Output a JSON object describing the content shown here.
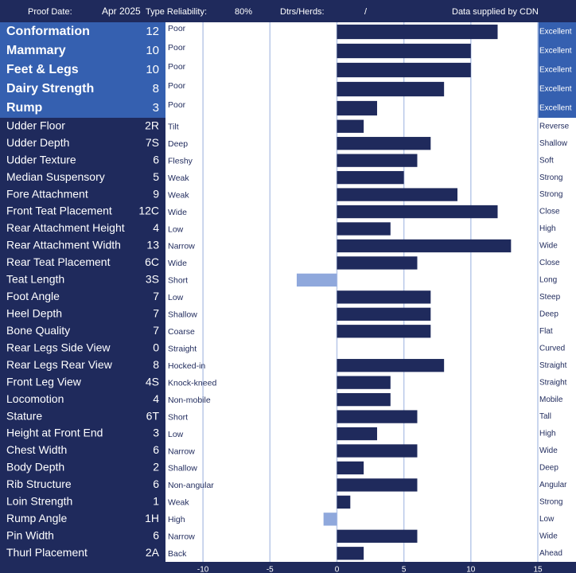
{
  "header": {
    "proof_date_label": "Proof Date:",
    "proof_date": "Apr 2025",
    "reliability_label": "Type Reliability:",
    "reliability": "80%",
    "dtrs_label": "Dtrs/Herds:",
    "dtrs": "/",
    "source": "Data supplied by CDN"
  },
  "chart_data": {
    "type": "hbar",
    "categories": [
      "Conformation",
      "Mammary",
      "Feet & Legs",
      "Dairy Strength",
      "Rump",
      "Udder Floor",
      "Udder Depth",
      "Udder Texture",
      "Median Suspensory",
      "Fore Attachment",
      "Front Teat Placement",
      "Rear Attachment Height",
      "Rear Attachment Width",
      "Rear Teat Placement",
      "Teat Length",
      "Foot Angle",
      "Heel Depth",
      "Bone Quality",
      "Rear Legs Side View",
      "Rear Legs Rear View",
      "Front Leg View",
      "Locomotion",
      "Stature",
      "Height at Front End",
      "Chest Width",
      "Body Depth",
      "Rib Structure",
      "Loin Strength",
      "Rump Angle",
      "Pin Width",
      "Thurl Placement"
    ],
    "values": [
      12,
      10,
      10,
      8,
      3,
      2,
      7,
      6,
      5,
      9,
      12,
      4,
      13,
      6,
      -3,
      7,
      7,
      7,
      0,
      8,
      4,
      4,
      6,
      3,
      6,
      2,
      6,
      1,
      -1,
      6,
      2
    ],
    "value_labels": [
      "12",
      "10",
      "10",
      "8",
      "3",
      "2R",
      "7S",
      "6",
      "5",
      "9",
      "12C",
      "4",
      "13",
      "6C",
      "3S",
      "7",
      "7",
      "7",
      "0",
      "8",
      "4S",
      "4",
      "6T",
      "3",
      "6",
      "2",
      "6",
      "1",
      "1H",
      "6",
      "2A"
    ],
    "left_labels": [
      "Poor",
      "Poor",
      "Poor",
      "Poor",
      "Poor",
      "Tilt",
      "Deep",
      "Fleshy",
      "Weak",
      "Weak",
      "Wide",
      "Low",
      "Narrow",
      "Wide",
      "Short",
      "Low",
      "Shallow",
      "Coarse",
      "Straight",
      "Hocked-in",
      "Knock-kneed",
      "Non-mobile",
      "Short",
      "Low",
      "Narrow",
      "Shallow",
      "Non-angular",
      "Weak",
      "High",
      "Narrow",
      "Back"
    ],
    "right_labels": [
      "Excellent",
      "Excellent",
      "Excellent",
      "Excellent",
      "Excellent",
      "Reverse",
      "Shallow",
      "Soft",
      "Strong",
      "Strong",
      "Close",
      "High",
      "Wide",
      "Close",
      "Long",
      "Steep",
      "Deep",
      "Flat",
      "Curved",
      "Straight",
      "Straight",
      "Mobile",
      "Tall",
      "High",
      "Wide",
      "Deep",
      "Angular",
      "Strong",
      "Low",
      "Wide",
      "Ahead"
    ],
    "xlim": [
      -12.8,
      15
    ],
    "xticks": [
      -10,
      -5,
      0,
      5,
      10,
      15
    ],
    "color": "#1f2a5c",
    "negative_color": "#8fa8dc",
    "grid": true
  }
}
